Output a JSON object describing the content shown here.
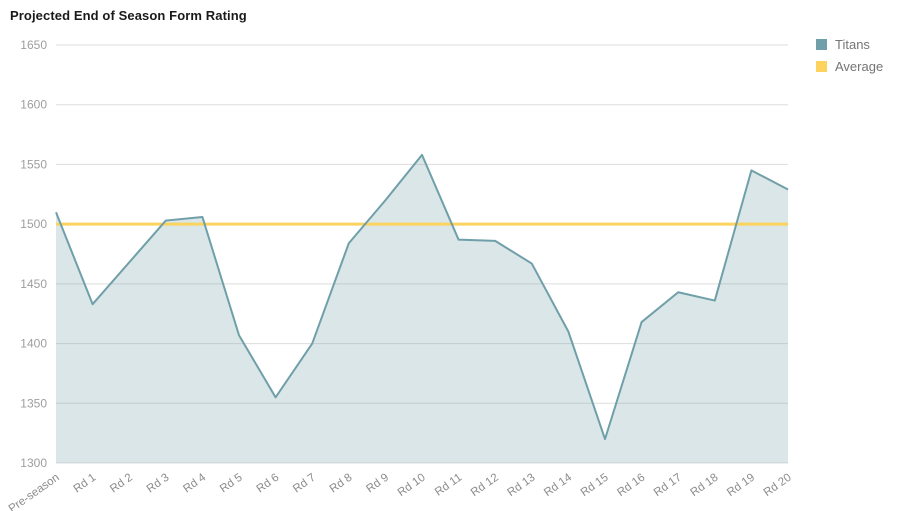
{
  "title": "Projected End of Season Form Rating",
  "colors": {
    "titans_line": "#6f9fa8",
    "titans_fill": "rgba(111,159,168,0.26)",
    "average_line": "#fcd35f",
    "grid": "#dddddd",
    "y_label_text": "#9e9e9e",
    "x_label_text": "#8c8c8c",
    "legend_text": "#757575",
    "title_text": "#1a1a1a"
  },
  "legend": {
    "position": "top-right",
    "items": [
      {
        "label": "Titans",
        "color": "#6f9fa8"
      },
      {
        "label": "Average",
        "color": "#fcd35f"
      }
    ]
  },
  "chart_data": {
    "type": "area",
    "title": "Projected End of Season Form Rating",
    "xlabel": "",
    "ylabel": "",
    "ylim": [
      1300,
      1650
    ],
    "yticks": [
      1650,
      1600,
      1550,
      1500,
      1450,
      1400,
      1350,
      1300
    ],
    "grid": true,
    "legend_position": "top-right",
    "categories": [
      "Pre-season",
      "Rd 1",
      "Rd 2",
      "Rd 3",
      "Rd 4",
      "Rd 5",
      "Rd 6",
      "Rd 7",
      "Rd 8",
      "Rd 9",
      "Rd 10",
      "Rd 11",
      "Rd 12",
      "Rd 13",
      "Rd 14",
      "Rd 15",
      "Rd 16",
      "Rd 17",
      "Rd 18",
      "Rd 19",
      "Rd 20"
    ],
    "series": [
      {
        "name": "Titans",
        "type": "area",
        "values": [
          1510,
          1433,
          1468,
          1503,
          1506,
          1407,
          1355,
          1400,
          1484,
          1520,
          1558,
          1487,
          1486,
          1467,
          1410,
          1320,
          1418,
          1443,
          1436,
          1545,
          1529
        ]
      },
      {
        "name": "Average",
        "type": "line",
        "constant": 1500
      }
    ]
  }
}
